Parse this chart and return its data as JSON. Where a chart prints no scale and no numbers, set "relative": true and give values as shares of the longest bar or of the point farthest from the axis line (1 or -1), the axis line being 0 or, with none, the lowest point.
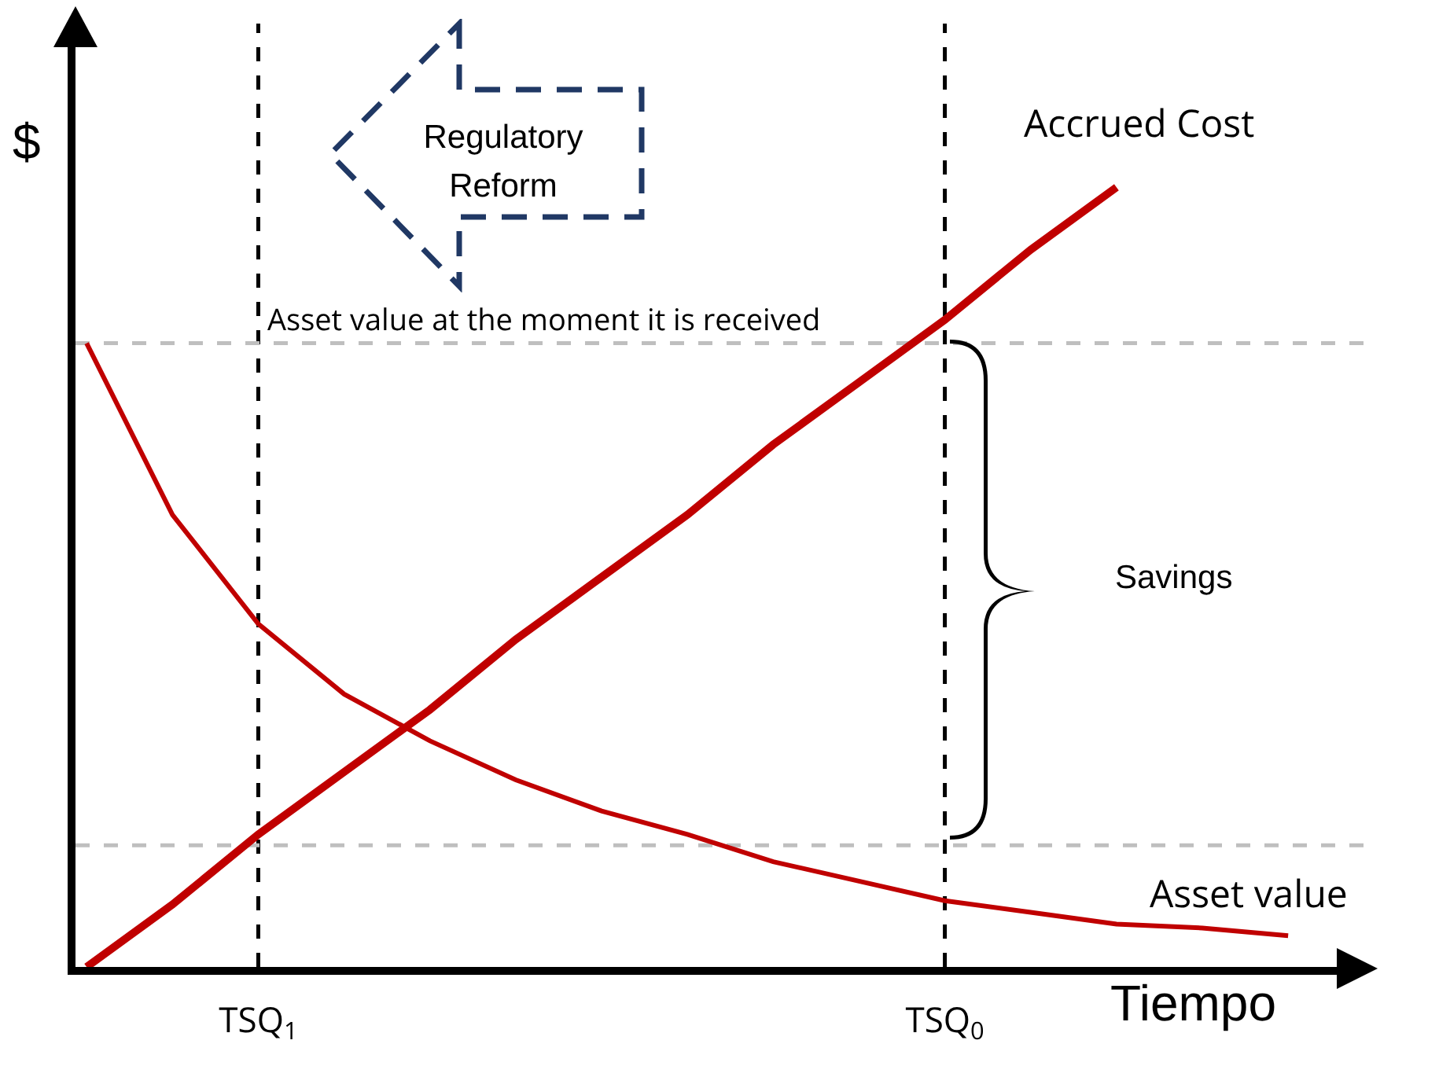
{
  "chart_data": {
    "type": "line",
    "relative": true,
    "xlabel": "Tiempo",
    "ylabel": "$",
    "categories": [
      null,
      null,
      "TSQ$_{1}$",
      null,
      null,
      null,
      null,
      null,
      null,
      null,
      "TSQ$_{0}$",
      null,
      null,
      null,
      null
    ],
    "series": [
      {
        "name": "Accrued Cost",
        "color": "#c00000",
        "values": [
          0,
          0.08,
          0.17,
          0.25,
          0.33,
          0.42,
          0.5,
          0.58,
          0.67,
          0.75,
          0.83,
          0.92,
          1,
          null,
          null
        ]
      },
      {
        "name": "Asset value",
        "color": "#c00000",
        "values": [
          0.8,
          0.58,
          0.44,
          0.35,
          0.29,
          0.24,
          0.2,
          0.17,
          0.135,
          0.11,
          0.085,
          0.07,
          0.055,
          0.05,
          0.04
        ]
      }
    ],
    "ref_lines": [
      {
        "axis": "x",
        "value": "TSQ$_{1}$",
        "color": "#000000",
        "line_style": "dashed"
      },
      {
        "axis": "x",
        "value": "TSQ$_{0}$",
        "color": "#000000",
        "line_style": "dashed"
      },
      {
        "axis": "y",
        "value": 0.8,
        "label": "Asset value at the moment it is received",
        "color": "#bfbfbf",
        "line_style": "dashed"
      },
      {
        "axis": "y",
        "value": 0.156,
        "color": "#bfbfbf",
        "line_style": "dashed"
      }
    ],
    "annotations": [
      "Regulatory Reform",
      "Savings"
    ],
    "legend": false,
    "grid": false,
    "tick_labels": "x",
    "marker": "none",
    "line_style": "solid"
  }
}
